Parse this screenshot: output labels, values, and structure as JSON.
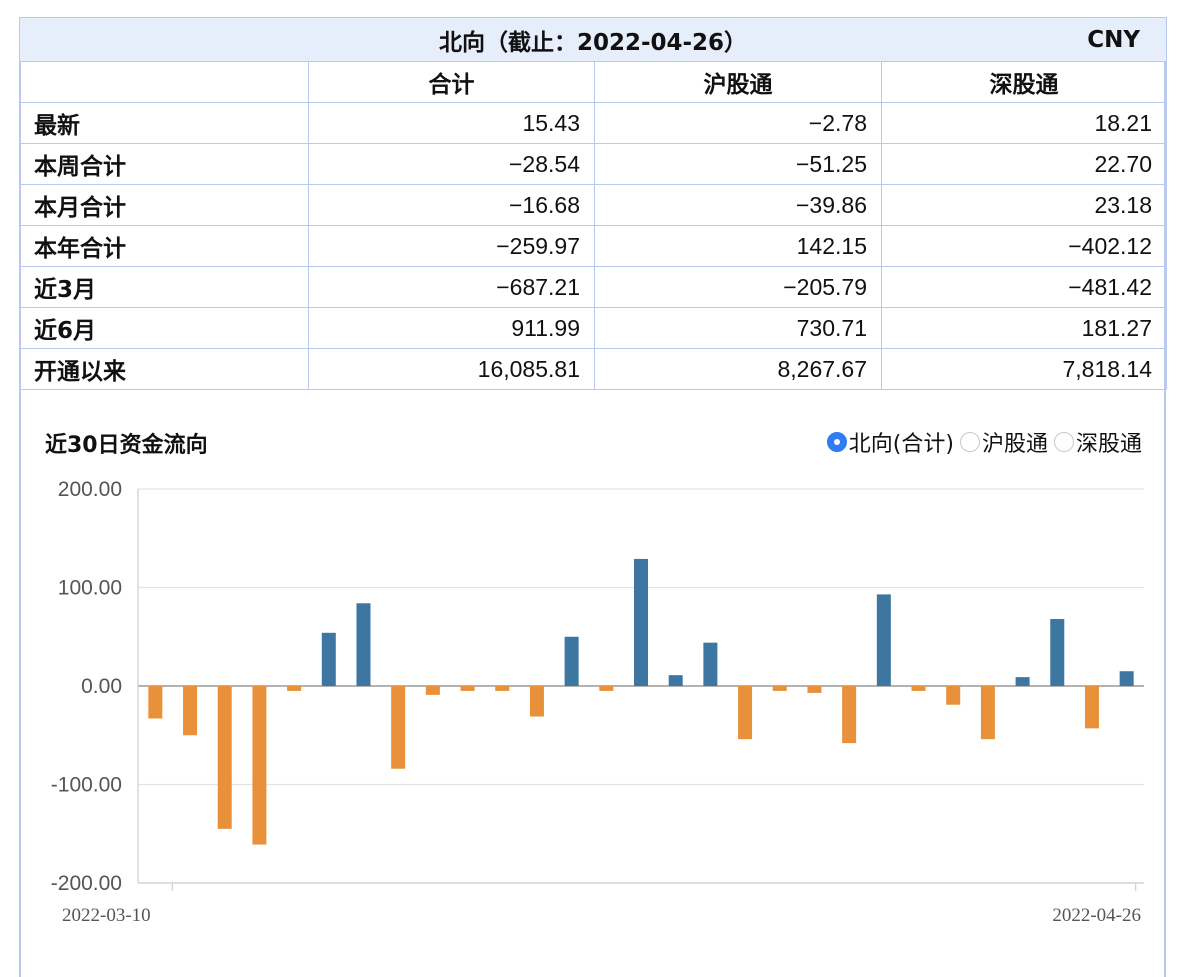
{
  "table": {
    "title": "北向（截止：2022-04-26）",
    "currency": "CNY",
    "headers": [
      "",
      "合计",
      "沪股通",
      "深股通"
    ],
    "rows": [
      {
        "label": "最新",
        "total": "15.43",
        "sh": "−2.78",
        "sz": "18.21"
      },
      {
        "label": "本周合计",
        "total": "−28.54",
        "sh": "−51.25",
        "sz": "22.70"
      },
      {
        "label": "本月合计",
        "total": "−16.68",
        "sh": "−39.86",
        "sz": "23.18"
      },
      {
        "label": "本年合计",
        "total": "−259.97",
        "sh": "142.15",
        "sz": "−402.12"
      },
      {
        "label": "近3月",
        "total": "−687.21",
        "sh": "−205.79",
        "sz": "−481.42"
      },
      {
        "label": "近6月",
        "total": "911.99",
        "sh": "730.71",
        "sz": "181.27"
      },
      {
        "label": "开通以来",
        "total": "16,085.81",
        "sh": "8,267.67",
        "sz": "7,818.14"
      }
    ]
  },
  "chart_section": {
    "title": "近30日资金流向",
    "legend": [
      {
        "label": "北向(合计)",
        "selected": true
      },
      {
        "label": "沪股通",
        "selected": false
      },
      {
        "label": "深股通",
        "selected": false
      }
    ]
  },
  "colors": {
    "positive": "#3d76a0",
    "negative": "#e8913a",
    "header_bg": "#e6edfb",
    "border": "#b9c8ee",
    "legend_active": "#2f7df6"
  },
  "chart_data": {
    "type": "bar",
    "title": "近30日资金流向",
    "series": [
      {
        "name": "北向(合计)",
        "values": [
          -33,
          -50,
          -145,
          -161,
          -5,
          54,
          84,
          -84,
          -9,
          -5,
          -5,
          -31,
          50,
          -5,
          129,
          11,
          44,
          -54,
          -5,
          -7,
          -58,
          93,
          -5,
          -19,
          -54,
          9,
          68,
          -43,
          15
        ]
      }
    ],
    "x_start_label": "2022-03-10",
    "x_end_label": "2022-04-26",
    "ytick_labels": [
      "200.00",
      "100.00",
      "0.00",
      "-100.00",
      "-200.00"
    ],
    "ylim": [
      -200,
      200
    ],
    "grid": true
  }
}
